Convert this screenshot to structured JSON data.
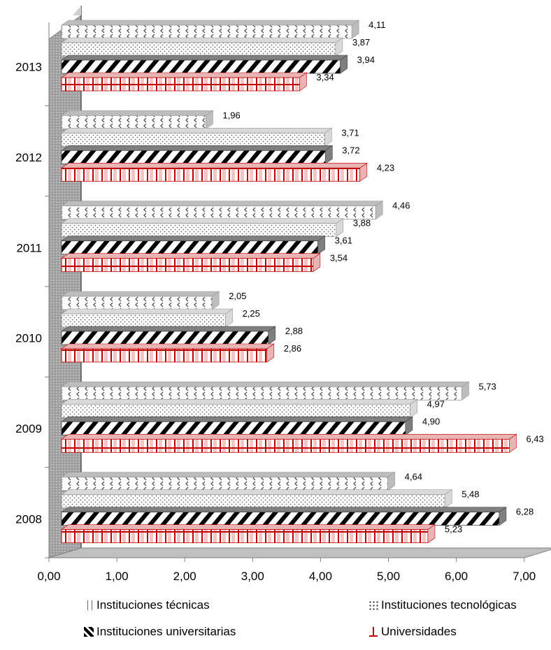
{
  "chart_data": {
    "type": "bar",
    "orientation": "horizontal",
    "categories": [
      "2008",
      "2009",
      "2010",
      "2011",
      "2012",
      "2013"
    ],
    "series": [
      {
        "name": "Instituciones  técnicas",
        "values": [
          4.64,
          5.73,
          2.05,
          4.46,
          1.96,
          4.11
        ],
        "labels": [
          "4,64",
          "5,73",
          "2,05",
          "4,46",
          "1,96",
          "4,11"
        ]
      },
      {
        "name": "Instituciones tecnológicas",
        "values": [
          5.48,
          4.97,
          2.25,
          3.88,
          3.71,
          3.87
        ],
        "labels": [
          "5,48",
          "4,97",
          "2,25",
          "3,88",
          "3,71",
          "3,87"
        ]
      },
      {
        "name": "Instituciones universitarias",
        "values": [
          6.28,
          4.9,
          2.88,
          3.61,
          3.72,
          3.94
        ],
        "labels": [
          "6,28",
          "4,90",
          "2,88",
          "3,61",
          "3,72",
          "3,94"
        ]
      },
      {
        "name": "Universidades",
        "values": [
          5.23,
          6.43,
          2.86,
          3.54,
          4.23,
          3.34
        ],
        "labels": [
          "5,23",
          "6,43",
          "2,86",
          "3,54",
          "4,23",
          "3,34"
        ]
      }
    ],
    "x_ticks": [
      "0,00",
      "1,00",
      "2,00",
      "3,00",
      "4,00",
      "5,00",
      "6,00",
      "7,00"
    ],
    "xlim": [
      0,
      7
    ],
    "title": "",
    "xlabel": "",
    "ylabel": "",
    "grid": false,
    "legend_position": "bottom",
    "colors": {
      "text": "#000000",
      "wall": "#a6a6a6",
      "universidades": "#c00000",
      "axis": "#808080"
    }
  }
}
